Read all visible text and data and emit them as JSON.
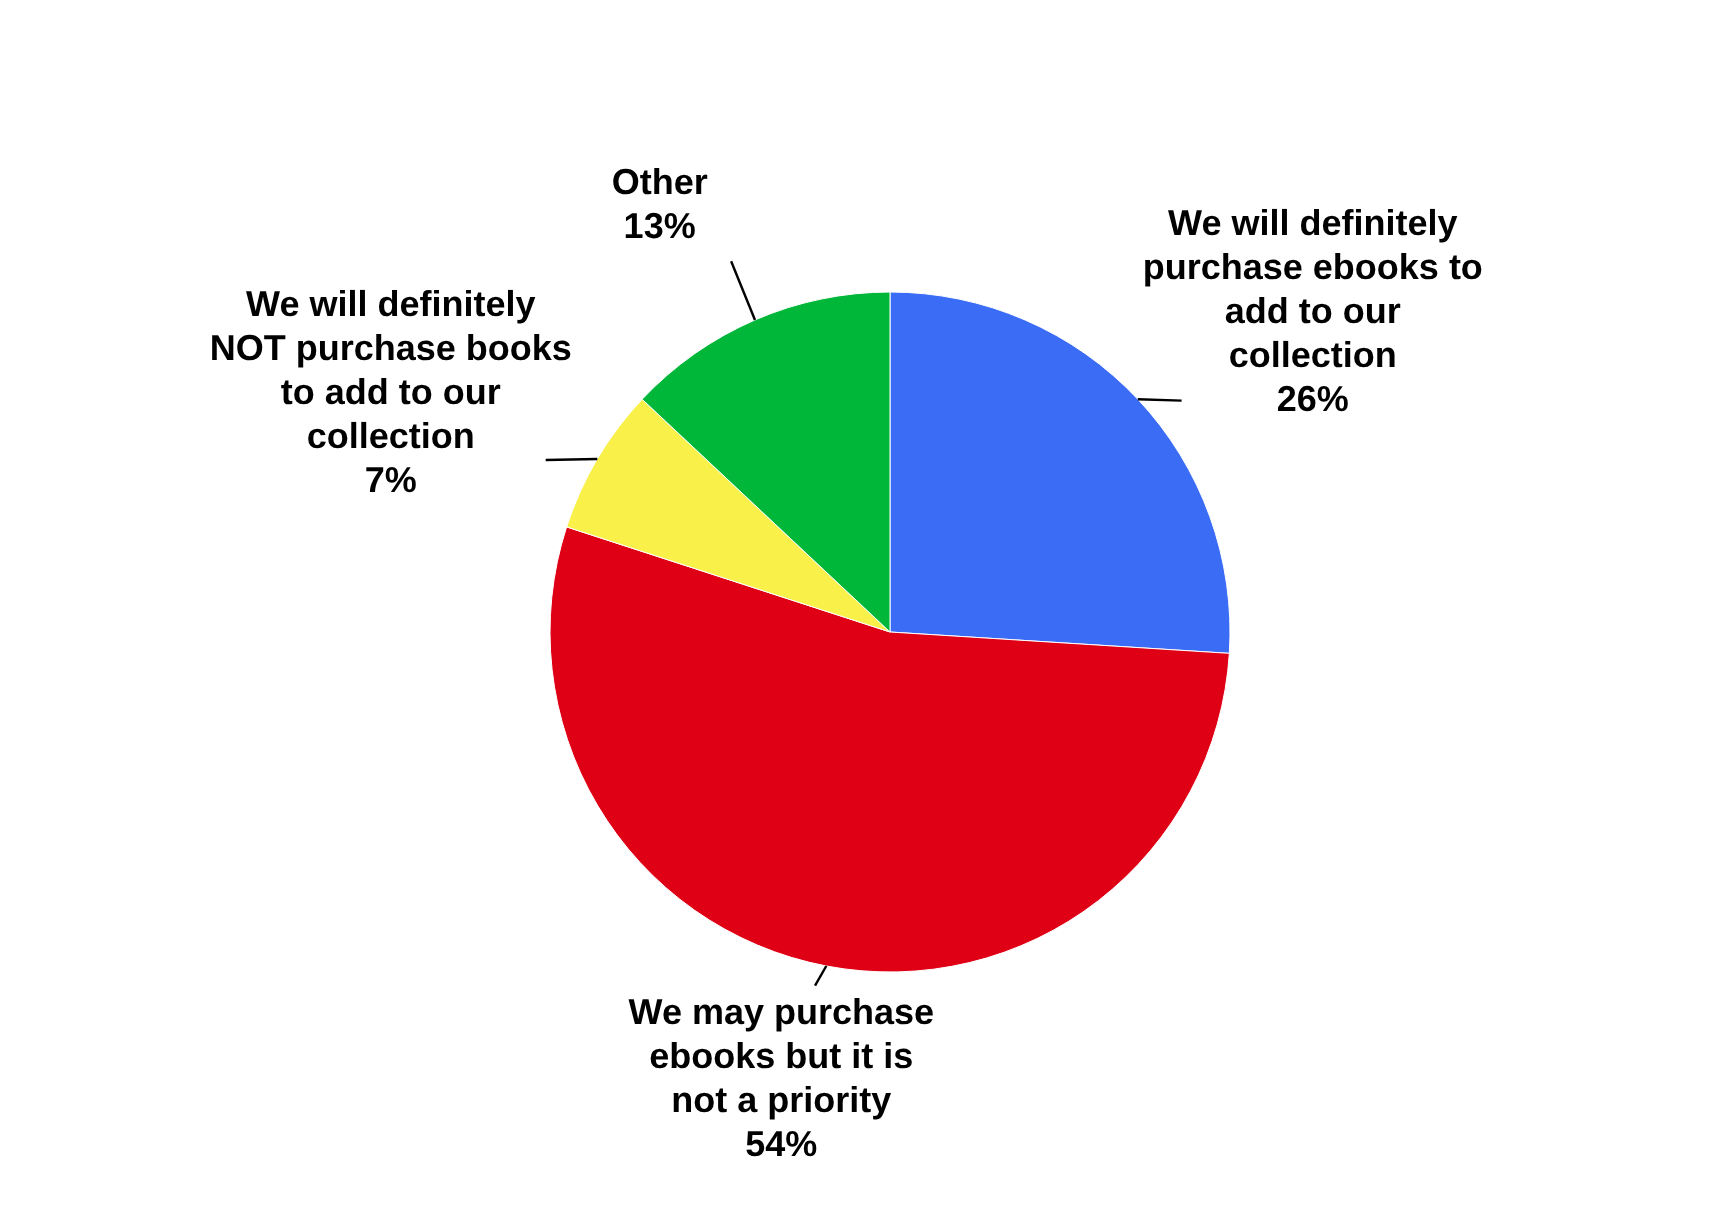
{
  "chart_data": {
    "type": "pie",
    "categories": [
      "We will definitely purchase ebooks to add to our collection",
      "We may purchase ebooks but it is not a priority",
      "We will definitely NOT purchase books to add to our collection",
      "Other"
    ],
    "values": [
      26,
      54,
      7,
      13
    ],
    "value_labels": [
      "26%",
      "54%",
      "7%",
      "13%"
    ],
    "colors": [
      "#3a6cf5",
      "#e00016",
      "#f9f04a",
      "#00b73a"
    ]
  }
}
